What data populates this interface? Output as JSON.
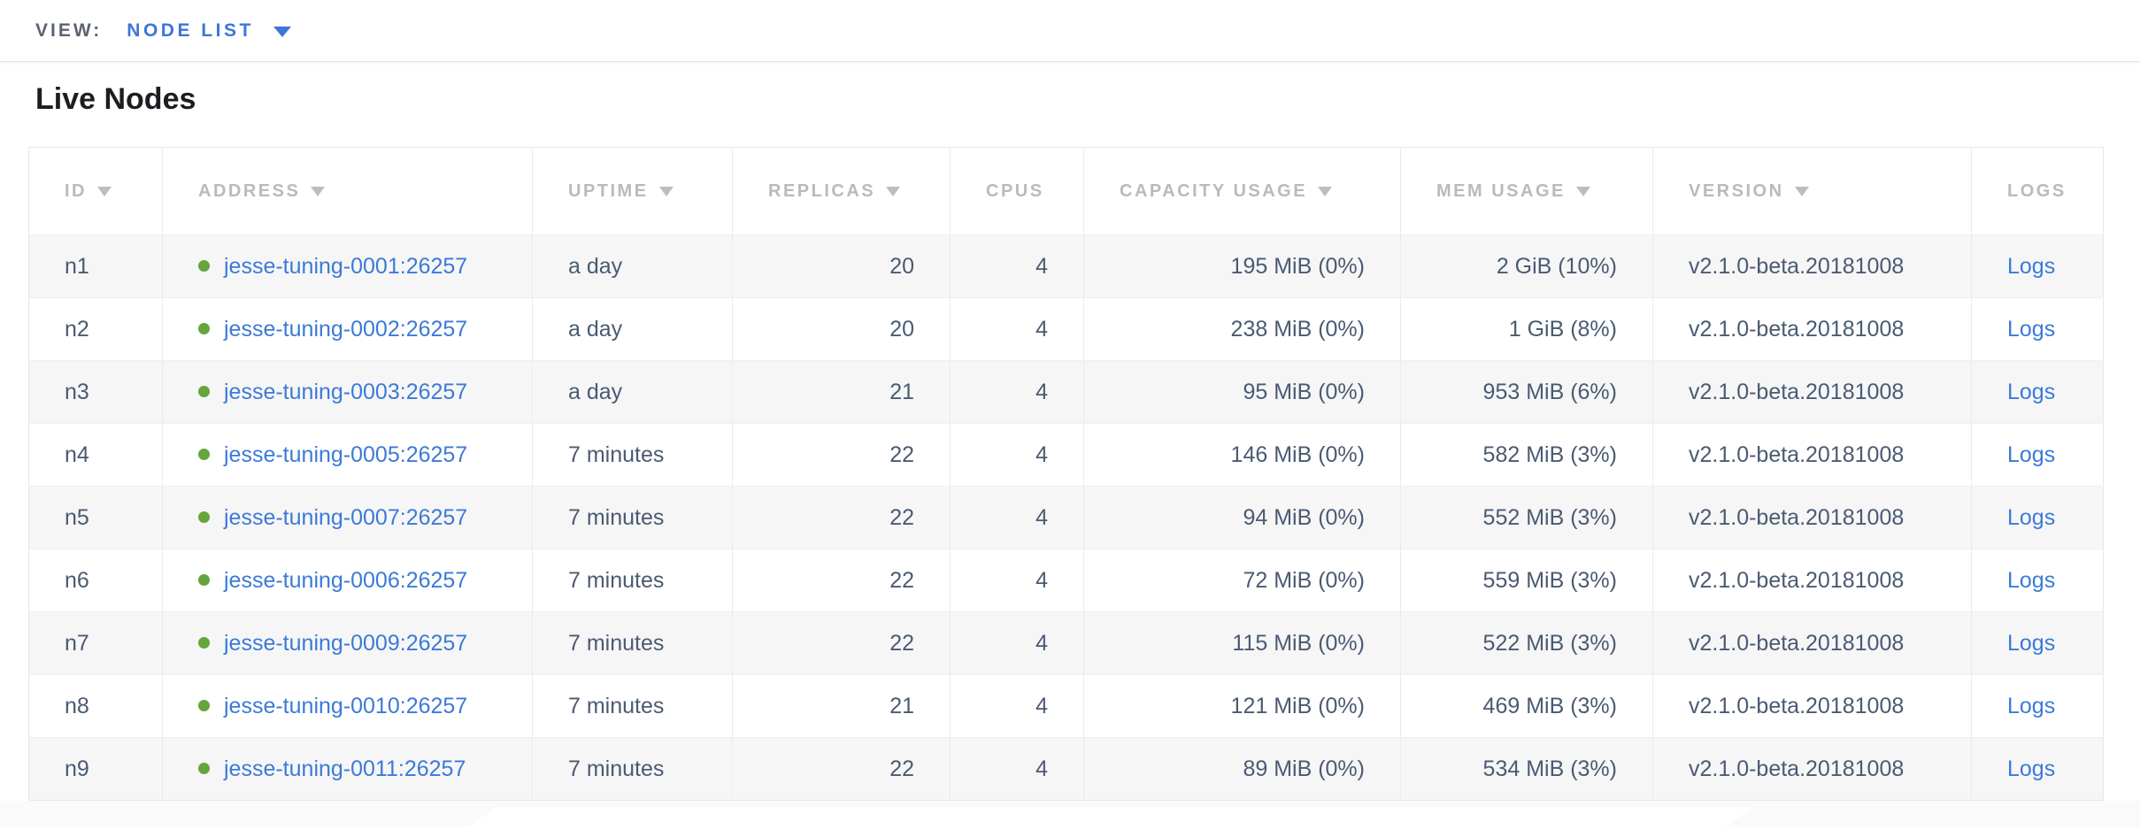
{
  "view_bar": {
    "label": "VIEW:",
    "selected": "NODE LIST"
  },
  "page": {
    "title": "Live Nodes"
  },
  "colors": {
    "link_blue": "#3b7ad7",
    "view_selector_blue": "#3e76d7",
    "node_healthy_green": "#65a53c",
    "header_text_gray": "#b9babe",
    "cell_text_slate": "#4b5a72"
  },
  "table": {
    "columns": [
      {
        "key": "id",
        "label": "ID",
        "sortable": true,
        "align": "left"
      },
      {
        "key": "address",
        "label": "ADDRESS",
        "sortable": true,
        "align": "left"
      },
      {
        "key": "uptime",
        "label": "UPTIME",
        "sortable": true,
        "align": "left"
      },
      {
        "key": "replicas",
        "label": "REPLICAS",
        "sortable": true,
        "align": "right"
      },
      {
        "key": "cpus",
        "label": "CPUS",
        "sortable": false,
        "align": "right"
      },
      {
        "key": "capacity",
        "label": "CAPACITY USAGE",
        "sortable": true,
        "align": "right"
      },
      {
        "key": "mem",
        "label": "MEM USAGE",
        "sortable": true,
        "align": "right"
      },
      {
        "key": "version",
        "label": "VERSION",
        "sortable": true,
        "align": "left"
      },
      {
        "key": "logs",
        "label": "LOGS",
        "sortable": false,
        "align": "left"
      }
    ],
    "rows": [
      {
        "id": "n1",
        "status": "healthy",
        "address": "jesse-tuning-0001:26257",
        "uptime": "a day",
        "replicas": "20",
        "cpus": "4",
        "capacity": "195 MiB (0%)",
        "mem": "2 GiB (10%)",
        "version": "v2.1.0-beta.20181008",
        "logs": "Logs"
      },
      {
        "id": "n2",
        "status": "healthy",
        "address": "jesse-tuning-0002:26257",
        "uptime": "a day",
        "replicas": "20",
        "cpus": "4",
        "capacity": "238 MiB (0%)",
        "mem": "1 GiB (8%)",
        "version": "v2.1.0-beta.20181008",
        "logs": "Logs"
      },
      {
        "id": "n3",
        "status": "healthy",
        "address": "jesse-tuning-0003:26257",
        "uptime": "a day",
        "replicas": "21",
        "cpus": "4",
        "capacity": "95 MiB (0%)",
        "mem": "953 MiB (6%)",
        "version": "v2.1.0-beta.20181008",
        "logs": "Logs"
      },
      {
        "id": "n4",
        "status": "healthy",
        "address": "jesse-tuning-0005:26257",
        "uptime": "7 minutes",
        "replicas": "22",
        "cpus": "4",
        "capacity": "146 MiB (0%)",
        "mem": "582 MiB (3%)",
        "version": "v2.1.0-beta.20181008",
        "logs": "Logs"
      },
      {
        "id": "n5",
        "status": "healthy",
        "address": "jesse-tuning-0007:26257",
        "uptime": "7 minutes",
        "replicas": "22",
        "cpus": "4",
        "capacity": "94 MiB (0%)",
        "mem": "552 MiB (3%)",
        "version": "v2.1.0-beta.20181008",
        "logs": "Logs"
      },
      {
        "id": "n6",
        "status": "healthy",
        "address": "jesse-tuning-0006:26257",
        "uptime": "7 minutes",
        "replicas": "22",
        "cpus": "4",
        "capacity": "72 MiB (0%)",
        "mem": "559 MiB (3%)",
        "version": "v2.1.0-beta.20181008",
        "logs": "Logs"
      },
      {
        "id": "n7",
        "status": "healthy",
        "address": "jesse-tuning-0009:26257",
        "uptime": "7 minutes",
        "replicas": "22",
        "cpus": "4",
        "capacity": "115 MiB (0%)",
        "mem": "522 MiB (3%)",
        "version": "v2.1.0-beta.20181008",
        "logs": "Logs"
      },
      {
        "id": "n8",
        "status": "healthy",
        "address": "jesse-tuning-0010:26257",
        "uptime": "7 minutes",
        "replicas": "21",
        "cpus": "4",
        "capacity": "121 MiB (0%)",
        "mem": "469 MiB (3%)",
        "version": "v2.1.0-beta.20181008",
        "logs": "Logs"
      },
      {
        "id": "n9",
        "status": "healthy",
        "address": "jesse-tuning-0011:26257",
        "uptime": "7 minutes",
        "replicas": "22",
        "cpus": "4",
        "capacity": "89 MiB (0%)",
        "mem": "534 MiB (3%)",
        "version": "v2.1.0-beta.20181008",
        "logs": "Logs"
      }
    ]
  }
}
